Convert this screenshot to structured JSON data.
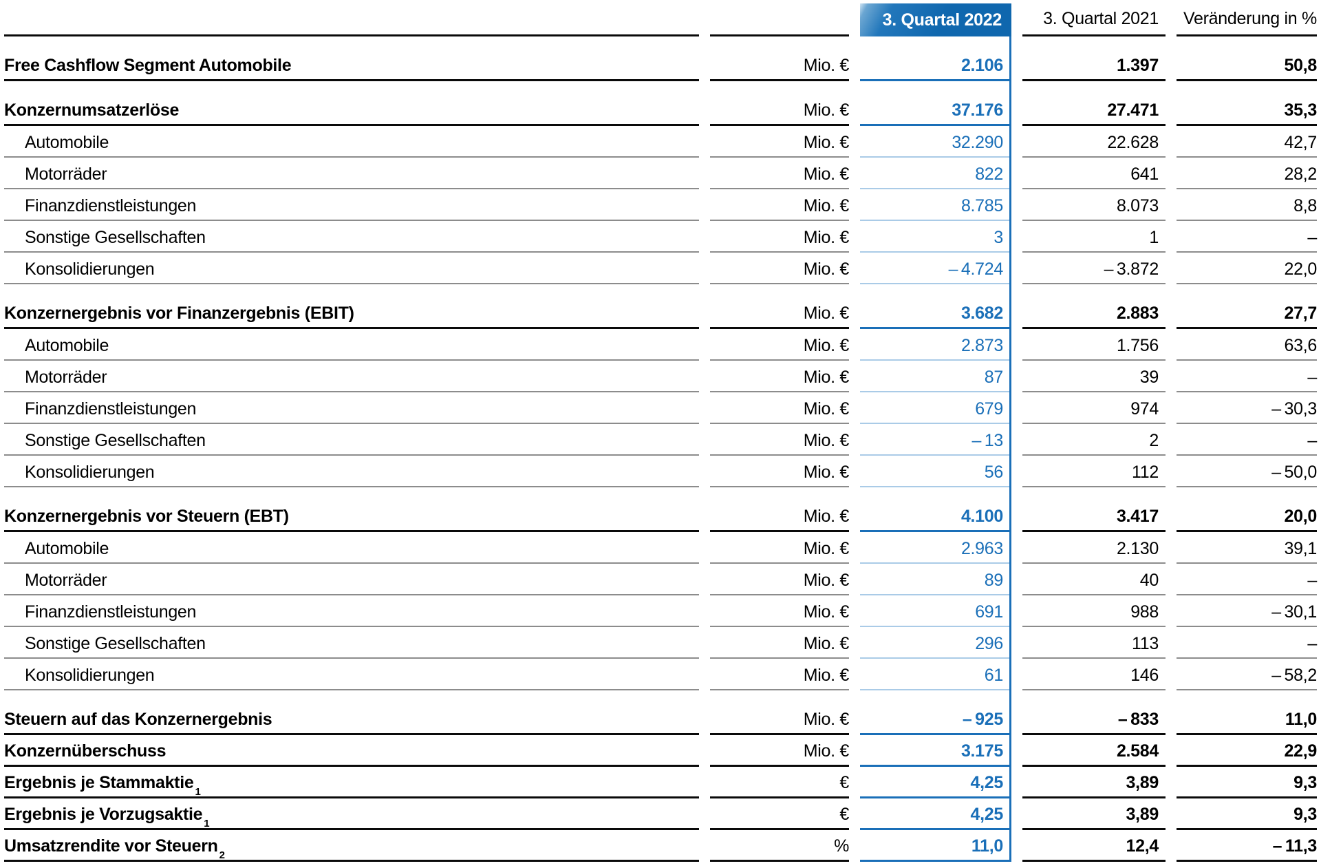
{
  "colors": {
    "highlight_blue": "#0f67ae",
    "value_blue": "#1a6fb8",
    "light_blue_rule": "#aacbe7",
    "rule_dark": "#0a0a0a",
    "rule_gray": "#8c8c8c"
  },
  "header": {
    "col_2022": "3. Quartal 2022",
    "col_2021": "3. Quartal 2021",
    "col_change": "Veränderung in %"
  },
  "rows": [
    {
      "label": "Free Cashflow Segment Automobile",
      "unit": "Mio. €",
      "q2022": "2.106",
      "q2021": "1.397",
      "change": "50,8"
    },
    {
      "label": "Konzernumsatzerlöse",
      "unit": "Mio. €",
      "q2022": "37.176",
      "q2021": "27.471",
      "change": "35,3"
    },
    {
      "label": "Automobile",
      "unit": "Mio. €",
      "q2022": "32.290",
      "q2021": "22.628",
      "change": "42,7"
    },
    {
      "label": "Motorräder",
      "unit": "Mio. €",
      "q2022": "822",
      "q2021": "641",
      "change": "28,2"
    },
    {
      "label": "Finanzdienstleistungen",
      "unit": "Mio. €",
      "q2022": "8.785",
      "q2021": "8.073",
      "change": "8,8"
    },
    {
      "label": "Sonstige Gesellschaften",
      "unit": "Mio. €",
      "q2022": "3",
      "q2021": "1",
      "change": "–"
    },
    {
      "label": "Konsolidierungen",
      "unit": "Mio. €",
      "q2022": "– 4.724",
      "q2021": "– 3.872",
      "change": "22,0"
    },
    {
      "label": "Konzernergebnis vor Finanzergebnis (EBIT)",
      "unit": "Mio. €",
      "q2022": "3.682",
      "q2021": "2.883",
      "change": "27,7"
    },
    {
      "label": "Automobile",
      "unit": "Mio. €",
      "q2022": "2.873",
      "q2021": "1.756",
      "change": "63,6"
    },
    {
      "label": "Motorräder",
      "unit": "Mio. €",
      "q2022": "87",
      "q2021": "39",
      "change": "–"
    },
    {
      "label": "Finanzdienstleistungen",
      "unit": "Mio. €",
      "q2022": "679",
      "q2021": "974",
      "change": "– 30,3"
    },
    {
      "label": "Sonstige Gesellschaften",
      "unit": "Mio. €",
      "q2022": "– 13",
      "q2021": "2",
      "change": "–"
    },
    {
      "label": "Konsolidierungen",
      "unit": "Mio. €",
      "q2022": "56",
      "q2021": "112",
      "change": "– 50,0"
    },
    {
      "label": "Konzernergebnis vor Steuern (EBT)",
      "unit": "Mio. €",
      "q2022": "4.100",
      "q2021": "3.417",
      "change": "20,0"
    },
    {
      "label": "Automobile",
      "unit": "Mio. €",
      "q2022": "2.963",
      "q2021": "2.130",
      "change": "39,1"
    },
    {
      "label": "Motorräder",
      "unit": "Mio. €",
      "q2022": "89",
      "q2021": "40",
      "change": "–"
    },
    {
      "label": "Finanzdienstleistungen",
      "unit": "Mio. €",
      "q2022": "691",
      "q2021": "988",
      "change": "– 30,1"
    },
    {
      "label": "Sonstige Gesellschaften",
      "unit": "Mio. €",
      "q2022": "296",
      "q2021": "113",
      "change": "–"
    },
    {
      "label": "Konsolidierungen",
      "unit": "Mio. €",
      "q2022": "61",
      "q2021": "146",
      "change": "– 58,2"
    },
    {
      "label": "Steuern auf das Konzernergebnis",
      "unit": "Mio. €",
      "q2022": "– 925",
      "q2021": "– 833",
      "change": "11,0"
    },
    {
      "label": "Konzernüberschuss",
      "unit": "Mio. €",
      "q2022": "3.175",
      "q2021": "2.584",
      "change": "22,9"
    },
    {
      "label": "Ergebnis je Stammaktie",
      "sup": "1",
      "unit": "€",
      "q2022": "4,25",
      "q2021": "3,89",
      "change": "9,3"
    },
    {
      "label": "Ergebnis je Vorzugsaktie",
      "sup": "1",
      "unit": "€",
      "q2022": "4,25",
      "q2021": "3,89",
      "change": "9,3"
    },
    {
      "label": "Umsatzrendite vor Steuern",
      "sup": "2",
      "unit": "%",
      "q2022": "11,0",
      "q2021": "12,4",
      "change": "– 11,3"
    }
  ]
}
